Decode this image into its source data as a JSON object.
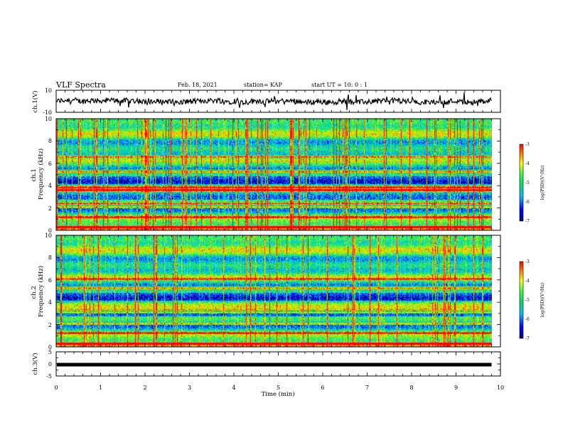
{
  "header": {
    "title": "VLF Spectra",
    "date": "Feb. 18, 2021",
    "station": "station= KAP",
    "start": "start  UT  =   10: 0   : 1"
  },
  "colors": {
    "spec_low": "#000090",
    "spec_mid": "#00c8ff",
    "spec_green": "#40e040",
    "spec_yellow": "#f0f000",
    "spec_high": "#ff0000",
    "trace": "#000000"
  },
  "chart_data": [
    {
      "type": "line",
      "id": "ch1-waveform",
      "ylabel": "ch.1(V)",
      "ylim": [
        -10,
        10
      ],
      "yticks": [
        "10",
        "-10"
      ],
      "xlim": [
        0,
        10
      ],
      "series": [
        {
          "x_end": 9.8
        }
      ]
    },
    {
      "type": "heatmap",
      "id": "ch1-spectrogram",
      "ylabel": "ch.1\nFrequency (kHz)",
      "ylim": [
        0,
        10
      ],
      "yticks": [
        "0",
        "2",
        "4",
        "6",
        "8",
        "10"
      ],
      "xlim": [
        0,
        10
      ],
      "data_x_end": 9.8,
      "colorbar": {
        "label": "log(PSD)(V²/Hz)",
        "range": [
          -7,
          -3
        ],
        "ticks": [
          "-3",
          "-4",
          "-5",
          "-6",
          "-7"
        ]
      },
      "bands_khz": [
        0.3,
        1.2,
        2.1,
        2.4,
        3.6,
        3.9,
        5.3,
        6.6
      ]
    },
    {
      "type": "heatmap",
      "id": "ch2-spectrogram",
      "ylabel": "ch.2\nFrequency (kHz)",
      "ylim": [
        0,
        10
      ],
      "yticks": [
        "0",
        "2",
        "4",
        "6",
        "8",
        "10"
      ],
      "xlim": [
        0,
        10
      ],
      "data_x_end": 9.8,
      "colorbar": {
        "label": "log(PSD)(V²/Hz)",
        "range": [
          -7,
          -3
        ],
        "ticks": [
          "-3",
          "-4",
          "-5",
          "-6",
          "-7"
        ]
      },
      "bands_khz": [
        0.3,
        1.3,
        2.1,
        3.1,
        3.4,
        5.3,
        6.1
      ]
    },
    {
      "type": "line",
      "id": "ch3-waveform",
      "ylabel": "ch.3(V)",
      "ylim": [
        -5,
        5
      ],
      "yticks": [
        "5",
        "0",
        "-5"
      ],
      "xlim": [
        0,
        10
      ],
      "series": [
        {
          "x_end": 9.8,
          "value": -0.3
        }
      ]
    }
  ],
  "xaxis": {
    "label": "Time  (min)",
    "ticks": [
      "0",
      "1",
      "2",
      "3",
      "4",
      "5",
      "6",
      "7",
      "8",
      "9",
      "10"
    ]
  }
}
